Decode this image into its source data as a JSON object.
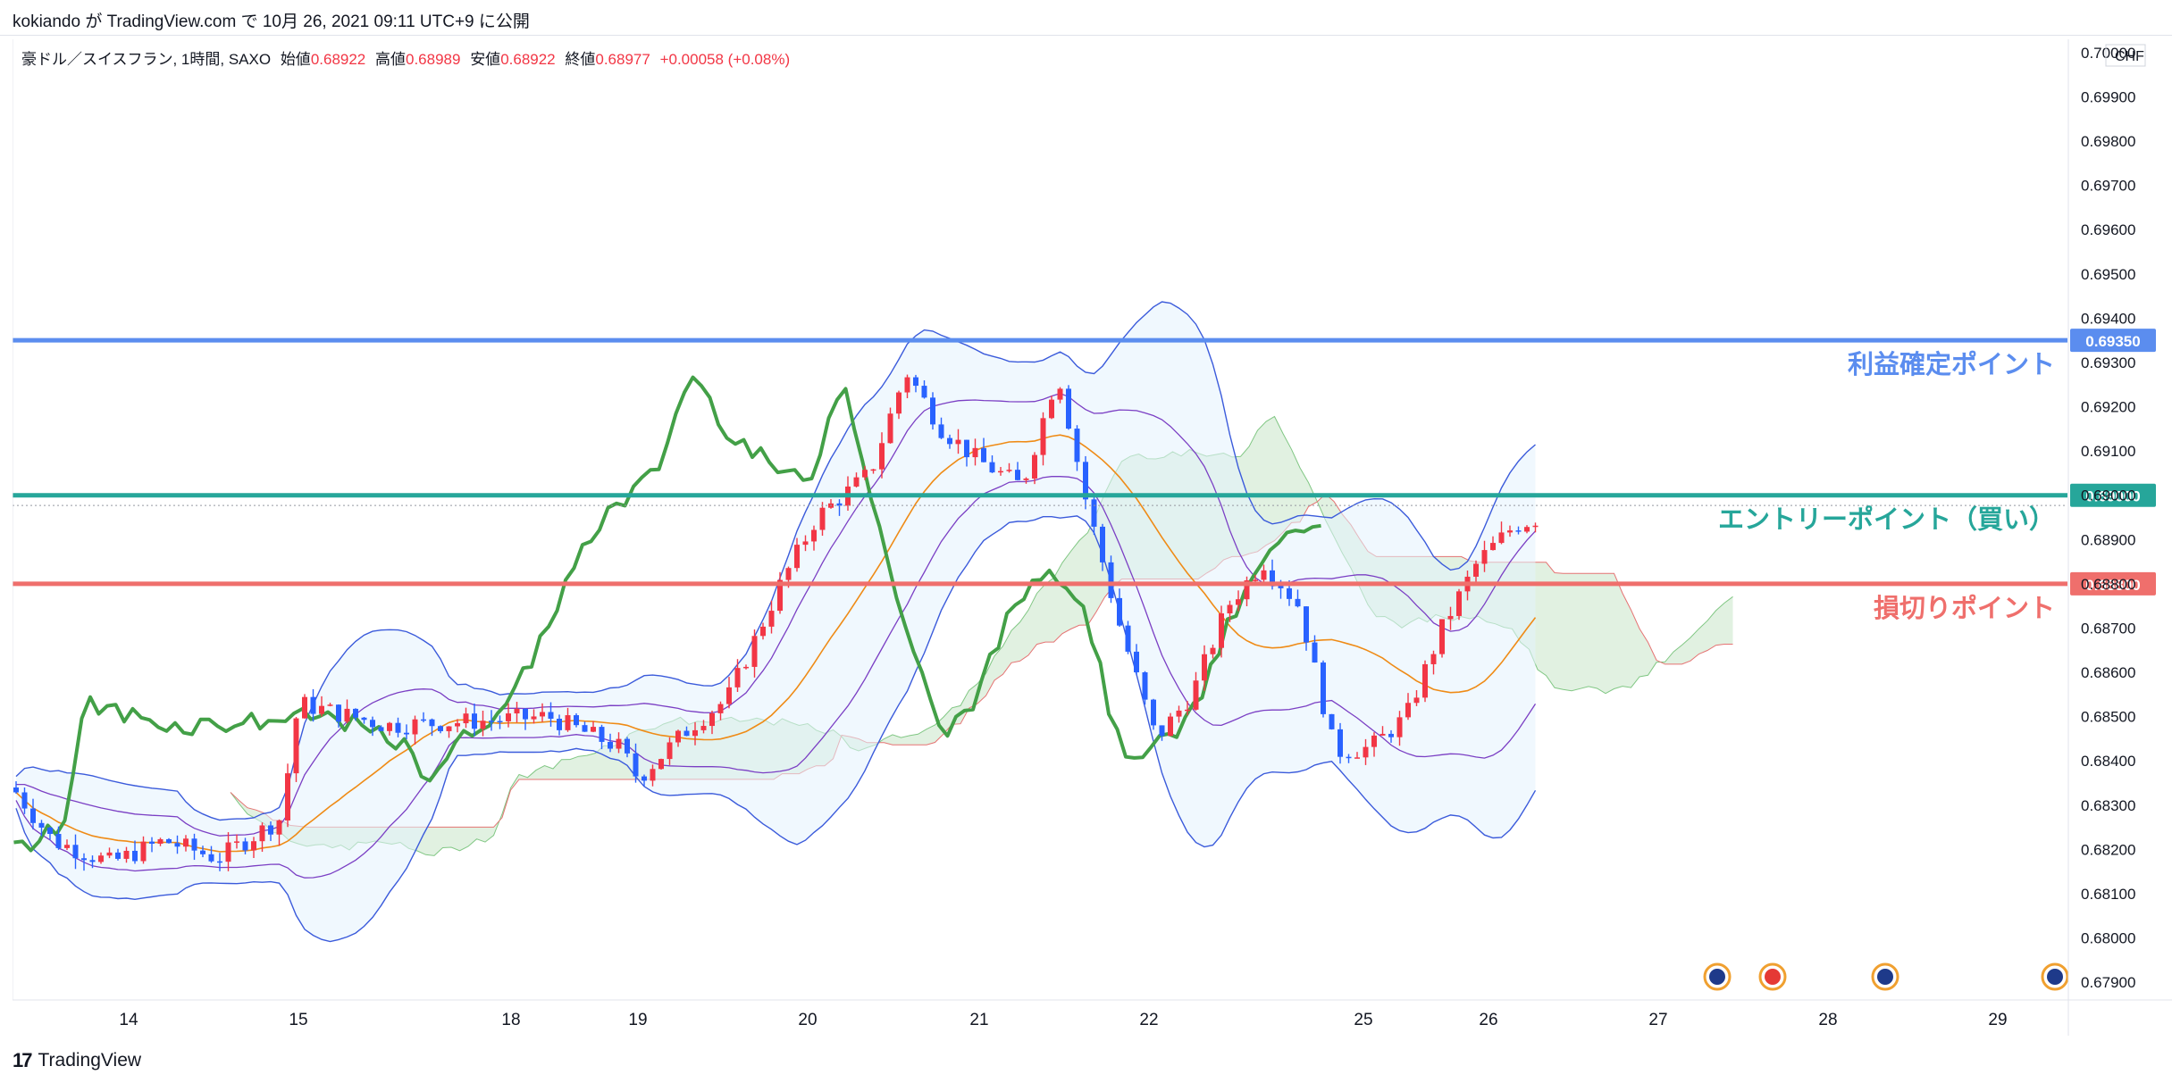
{
  "header": {
    "user": "kokiando",
    "text": "kokiando が TradingView.com で 10月 26, 2021 09:11 UTC+9 に公開"
  },
  "legend": {
    "symbol": "豪ドル／スイスフラン, 1時間, SAXO",
    "open_label": "始値",
    "open": "0.68922",
    "high_label": "高値",
    "high": "0.68989",
    "low_label": "安値",
    "low": "0.68922",
    "close_label": "終値",
    "close": "0.68977",
    "change": "+0.00058 (+0.08%)"
  },
  "footer": {
    "brand": "TradingView"
  },
  "chart_data": {
    "type": "line",
    "currency": "CHF",
    "y_ticks": [
      "0.70000",
      "0.69900",
      "0.69800",
      "0.69700",
      "0.69600",
      "0.69500",
      "0.69400",
      "0.69300",
      "0.69200",
      "0.69100",
      "0.69000",
      "0.68900",
      "0.68800",
      "0.68700",
      "0.68600",
      "0.68500",
      "0.68400",
      "0.68300",
      "0.68200",
      "0.68100",
      "0.68000",
      "0.67900"
    ],
    "ylim": [
      0.6786,
      0.7003
    ],
    "x_ticks": [
      "14",
      "15",
      "18",
      "19",
      "20",
      "21",
      "22",
      "25",
      "26",
      "27",
      "28",
      "29"
    ],
    "horizontal_levels": [
      {
        "value": 0.6935,
        "label": "利益確定ポイント",
        "price_label": "0.69350",
        "color": "#5b8def"
      },
      {
        "value": 0.69,
        "label": "エントリーポイント（買い）",
        "price_label": "0.69000",
        "color": "#26a69a"
      },
      {
        "value": 0.688,
        "label": "損切りポイント",
        "price_label": "0.68800",
        "color": "#ef6f6c"
      }
    ],
    "last_price": 0.68977,
    "colors": {
      "up": "#f23645",
      "down": "#2962ff",
      "bb": "#3b5bdb",
      "bb_fill": "#e3f2fd",
      "ma": "#ef8b16",
      "inner": "#7b3fc4",
      "chikou": "#43a047",
      "kumo_up": "#c8e6c9",
      "kumo_down": "#ffcdd2"
    },
    "indicators": [
      "Bollinger Bands",
      "Moving Average",
      "Ichimoku Cloud"
    ],
    "event_icons": [
      "au-flag-icon",
      "ch-flag-icon",
      "au-flag-icon",
      "au-flag-icon"
    ]
  }
}
